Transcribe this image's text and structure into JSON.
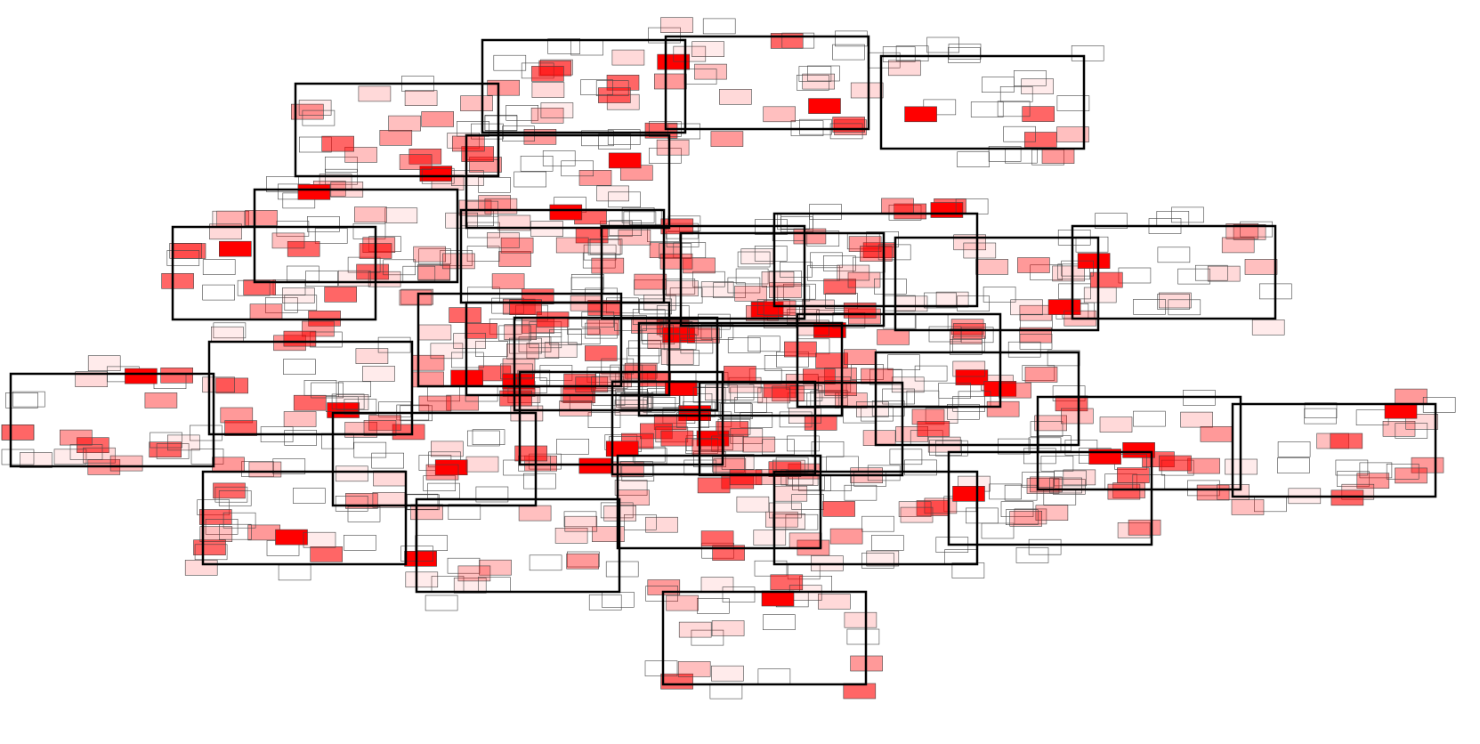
{
  "caption": "",
  "colors": {
    "background": "#ffffff",
    "cluster_stroke": "#000000",
    "member_stroke": "#444444",
    "highlight": "#ff0000"
  },
  "diagram": {
    "type": "overlapping-rectangle-clusters",
    "cluster_count": 34,
    "highlight_levels": [
      0.0,
      0.08,
      0.15,
      0.25,
      0.4,
      0.6,
      1.0
    ],
    "labels": []
  }
}
